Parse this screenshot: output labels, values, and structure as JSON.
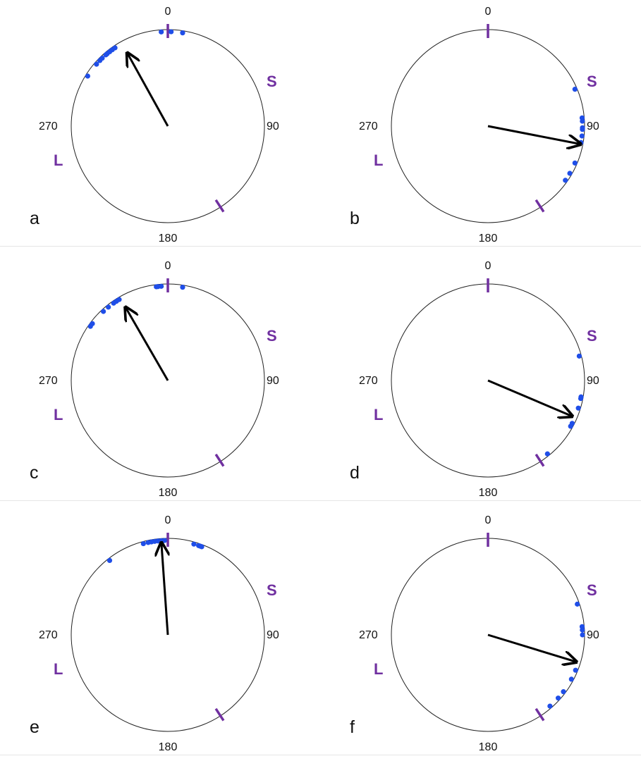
{
  "axis_labels": {
    "north": "0",
    "east": "90",
    "south": "180",
    "west": "270"
  },
  "markers": {
    "s_label": "S",
    "l_label": "L",
    "color": "#7030a0"
  },
  "colors": {
    "points": "#1f4ee8",
    "arrow": "#000000",
    "circle": "#222222"
  },
  "chart_data": [
    {
      "type": "scatter",
      "subtype": "circular",
      "panel_label": "a",
      "points_deg": [
        356,
        2,
        9,
        322,
        324,
        326,
        320,
        319,
        316,
        314,
        311,
        302
      ],
      "mean_direction_deg": 331,
      "mean_length": 0.86,
      "tick_marks_deg": [
        0,
        147
      ]
    },
    {
      "type": "scatter",
      "subtype": "circular",
      "panel_label": "b",
      "points_deg": [
        67,
        85,
        87,
        91,
        92,
        96,
        100,
        113,
        120,
        125
      ],
      "mean_direction_deg": 101,
      "mean_length": 0.97,
      "tick_marks_deg": [
        0,
        147
      ]
    },
    {
      "type": "scatter",
      "subtype": "circular",
      "panel_label": "c",
      "points_deg": [
        353,
        354,
        356,
        9,
        329,
        327,
        325,
        321,
        317,
        307,
        305
      ],
      "mean_direction_deg": 330,
      "mean_length": 0.87,
      "tick_marks_deg": [
        0,
        147
      ]
    },
    {
      "type": "scatter",
      "subtype": "circular",
      "panel_label": "d",
      "points_deg": [
        75,
        100,
        101,
        107,
        117,
        119,
        141
      ],
      "mean_direction_deg": 113,
      "mean_length": 0.94,
      "tick_marks_deg": [
        0,
        147
      ]
    },
    {
      "type": "scatter",
      "subtype": "circular",
      "panel_label": "e",
      "points_deg": [
        345,
        348,
        350,
        352,
        354,
        356,
        358,
        16,
        19,
        20,
        21,
        322
      ],
      "mean_direction_deg": 356,
      "mean_length": 0.95,
      "tick_marks_deg": [
        0,
        147
      ]
    },
    {
      "type": "scatter",
      "subtype": "circular",
      "panel_label": "f",
      "points_deg": [
        71,
        85,
        87,
        90,
        112,
        118,
        127,
        132,
        139
      ],
      "mean_direction_deg": 107,
      "mean_length": 0.95,
      "tick_marks_deg": [
        0,
        147
      ]
    }
  ]
}
